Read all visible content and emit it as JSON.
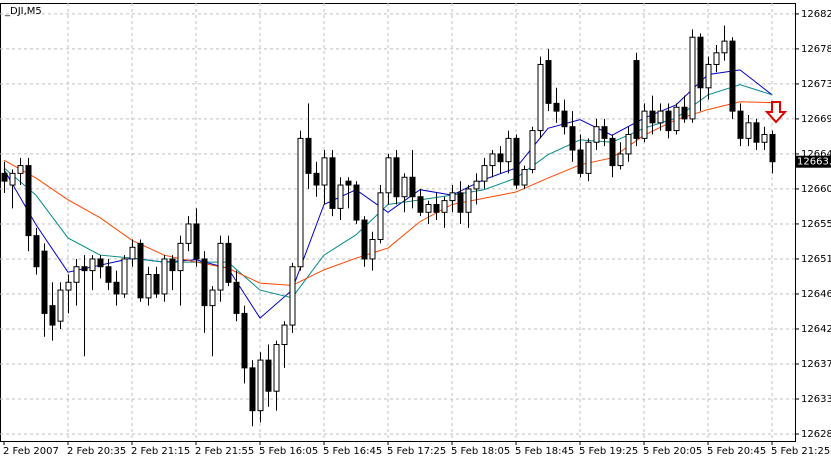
{
  "chart_data": {
    "type": "candlestick",
    "title": "_DJI,M5",
    "categories": [
      "2 Feb 2007",
      null,
      null,
      null,
      null,
      null,
      null,
      null,
      "2 Feb 20:35",
      null,
      null,
      null,
      null,
      null,
      null,
      null,
      "2 Feb 21:15",
      null,
      null,
      null,
      null,
      null,
      null,
      null,
      "2 Feb 21:55",
      null,
      null,
      null,
      null,
      null,
      null,
      null,
      "5 Feb 16:05",
      null,
      null,
      null,
      null,
      null,
      null,
      null,
      "5 Feb 16:45",
      null,
      null,
      null,
      null,
      null,
      null,
      null,
      "5 Feb 17:25",
      null,
      null,
      null,
      null,
      null,
      null,
      null,
      "5 Feb 18:05",
      null,
      null,
      null,
      null,
      null,
      null,
      null,
      "5 Feb 18:45",
      null,
      null,
      null,
      null,
      null,
      null,
      null,
      "5 Feb 19:25",
      null,
      null,
      null,
      null,
      null,
      null,
      null,
      "5 Feb 20:05",
      null,
      null,
      null,
      null,
      null,
      null,
      null,
      "5 Feb 20:45",
      null,
      null,
      null,
      null,
      null,
      null,
      null,
      "5 Feb 21:25"
    ],
    "open": [
      12662.0,
      12660.5,
      12662.0,
      12663.0,
      12654.0,
      12652.0,
      12645.0,
      12643.0,
      12647.0,
      12648.0,
      12650.0,
      12649.5,
      12651.0,
      12650.0,
      12648.0,
      12646.5,
      12651.0,
      12653.0,
      12646.0,
      12649.0,
      12646.5,
      12651.0,
      12649.5,
      12653.0,
      12655.5,
      12651.0,
      12645.0,
      12647.0,
      12653.0,
      12648.0,
      12644.0,
      12637.0,
      12631.5,
      12638.0,
      12634.0,
      12640.0,
      12642.5,
      12650.0,
      12666.5,
      12662.0,
      12660.5,
      12664.0,
      12657.5,
      12661.0,
      12660.5,
      12656.0,
      12651.0,
      12653.5,
      12659.5,
      12664.0,
      12659.0,
      12661.5,
      12659.0,
      12657.0,
      12658.0,
      12657.0,
      12658.5,
      12659.5,
      12657.0,
      12660.0,
      12661.0,
      12663.0,
      12664.5,
      12663.5,
      12666.5,
      12660.5,
      12662.5,
      12667.5,
      12676.5,
      12671.0,
      12670.0,
      12668.0,
      12665.0,
      12662.0,
      12666.0,
      12668.0,
      12666.5,
      12663.0,
      12664.5,
      12676.5,
      12666.5,
      12670.0,
      12668.5,
      12670.0,
      12667.5,
      12670.5,
      12669.0,
      12679.5,
      12673.0,
      12676.0,
      12677.5,
      12679.0,
      12670.0,
      12666.5,
      12668.5,
      12666.0,
      12667.0
    ],
    "high": [
      12663.5,
      12662.5,
      12664.0,
      12664.0,
      12655.0,
      12653.0,
      12648.0,
      12648.0,
      12649.0,
      12651.0,
      12651.5,
      12651.5,
      12651.5,
      12651.0,
      12649.5,
      12651.5,
      12653.5,
      12653.5,
      12650.0,
      12650.0,
      12651.5,
      12651.5,
      12654.0,
      12656.5,
      12657.5,
      12652.0,
      12647.5,
      12654.0,
      12654.0,
      12649.5,
      12645.0,
      12638.0,
      12639.0,
      12640.0,
      12640.5,
      12643.0,
      12650.5,
      12667.5,
      12671.0,
      12663.5,
      12665.0,
      12665.0,
      12661.5,
      12661.5,
      12661.0,
      12656.5,
      12654.5,
      12660.5,
      12664.5,
      12665.0,
      12662.0,
      12665.0,
      12660.0,
      12658.5,
      12659.5,
      12659.0,
      12660.5,
      12661.0,
      12660.5,
      12662.0,
      12664.0,
      12665.0,
      12665.5,
      12667.5,
      12667.0,
      12663.0,
      12668.0,
      12677.0,
      12678.0,
      12673.0,
      12671.5,
      12670.0,
      12667.0,
      12666.5,
      12669.0,
      12669.0,
      12667.0,
      12666.0,
      12668.0,
      12677.5,
      12671.0,
      12672.0,
      12671.0,
      12671.0,
      12671.0,
      12672.0,
      12680.5,
      12680.0,
      12677.0,
      12678.5,
      12681.0,
      12679.5,
      12671.0,
      12669.5,
      12669.0,
      12668.0,
      12667.5
    ],
    "low": [
      12659.5,
      12657.5,
      12660.5,
      12652.0,
      12649.0,
      12641.0,
      12640.5,
      12642.0,
      12644.0,
      12645.0,
      12638.5,
      12647.0,
      12648.5,
      12647.0,
      12645.0,
      12646.0,
      12650.0,
      12645.5,
      12645.0,
      12646.0,
      12645.5,
      12647.0,
      12645.0,
      12652.0,
      12650.0,
      12641.5,
      12638.5,
      12645.5,
      12647.5,
      12643.0,
      12635.0,
      12629.5,
      12630.0,
      12632.0,
      12631.5,
      12637.0,
      12641.5,
      12649.5,
      12660.0,
      12659.0,
      12658.0,
      12656.5,
      12656.0,
      12657.5,
      12655.5,
      12650.0,
      12649.5,
      12653.0,
      12658.0,
      12658.0,
      12657.0,
      12657.5,
      12656.5,
      12655.5,
      12656.0,
      12655.0,
      12657.0,
      12655.5,
      12655.0,
      12658.0,
      12660.0,
      12661.5,
      12662.0,
      12662.0,
      12660.0,
      12660.0,
      12662.0,
      12666.5,
      12670.0,
      12668.5,
      12667.0,
      12663.5,
      12661.5,
      12661.0,
      12665.0,
      12665.5,
      12661.5,
      12662.5,
      12663.5,
      12665.5,
      12666.0,
      12667.0,
      12667.5,
      12666.5,
      12667.0,
      12668.5,
      12668.5,
      12670.0,
      12671.5,
      12675.0,
      12676.5,
      12669.0,
      12665.5,
      12665.5,
      12665.0,
      12665.0,
      12662.0
    ],
    "close": [
      12661.0,
      12662.0,
      12663.0,
      12654.0,
      12650.0,
      12644.0,
      12642.5,
      12647.0,
      12648.0,
      12650.0,
      12649.5,
      12651.0,
      12650.0,
      12648.0,
      12646.5,
      12651.0,
      12652.5,
      12646.0,
      12649.0,
      12646.5,
      12651.0,
      12649.5,
      12653.0,
      12655.5,
      12651.0,
      12645.0,
      12647.0,
      12653.0,
      12648.0,
      12644.0,
      12637.0,
      12631.5,
      12638.0,
      12634.0,
      12640.0,
      12642.5,
      12650.0,
      12666.5,
      12662.0,
      12660.5,
      12664.0,
      12657.5,
      12660.5,
      12660.5,
      12656.0,
      12651.0,
      12653.5,
      12659.5,
      12664.0,
      12659.0,
      12661.5,
      12659.0,
      12657.0,
      12658.0,
      12657.0,
      12658.5,
      12659.5,
      12657.0,
      12660.0,
      12661.0,
      12663.0,
      12664.5,
      12663.5,
      12666.5,
      12660.5,
      12662.5,
      12667.5,
      12676.0,
      12671.0,
      12670.0,
      12668.0,
      12665.0,
      12662.0,
      12666.0,
      12668.0,
      12666.5,
      12663.0,
      12664.5,
      12667.0,
      12666.5,
      12670.0,
      12668.5,
      12670.0,
      12667.5,
      12670.5,
      12669.0,
      12679.5,
      12673.0,
      12676.0,
      12677.5,
      12679.0,
      12670.0,
      12666.5,
      12668.5,
      12666.0,
      12667.0,
      12663.5
    ],
    "series": [
      {
        "color": "#0000cc",
        "x": [
          0,
          4,
          8,
          12,
          16,
          20,
          24,
          28,
          32,
          36,
          40,
          44,
          48,
          52,
          56,
          60,
          64,
          68,
          72,
          76,
          80,
          84,
          88,
          92,
          96
        ],
        "values": [
          12662.5,
          12655.4,
          12649.3,
          12650.2,
          12651.1,
          12650.6,
          12650.9,
          12649.8,
          12643.4,
          12647.0,
          12658.0,
          12659.9,
          12657.0,
          12659.9,
          12659.2,
          12661.2,
          12662.7,
          12667.8,
          12668.9,
          12666.9,
          12669.1,
          12670.8,
          12674.7,
          12675.3,
          12672.1
        ]
      },
      {
        "color": "#008b8b",
        "x": [
          0,
          4,
          8,
          12,
          16,
          20,
          24,
          28,
          32,
          36,
          40,
          44,
          48,
          52,
          56,
          60,
          64,
          68,
          72,
          76,
          80,
          84,
          88,
          92,
          96
        ],
        "values": [
          12662.7,
          12659.2,
          12653.7,
          12651.5,
          12651.1,
          12650.6,
          12650.6,
          12650.6,
          12647.0,
          12646.0,
          12651.5,
          12654.1,
          12658.0,
          12658.6,
          12659.2,
          12659.9,
          12661.4,
          12664.4,
          12666.3,
          12666.0,
          12667.8,
          12669.1,
          12672.1,
          12673.4,
          12672.1
        ]
      },
      {
        "color": "#ff4500",
        "x": [
          0,
          4,
          8,
          12,
          16,
          20,
          24,
          28,
          32,
          36,
          40,
          44,
          48,
          52,
          56,
          60,
          64,
          68,
          72,
          76,
          80,
          84,
          88,
          92,
          96
        ],
        "values": [
          12663.7,
          12661.4,
          12658.6,
          12656.3,
          12653.4,
          12651.5,
          12650.6,
          12649.8,
          12647.9,
          12647.6,
          12649.6,
          12651.1,
          12652.4,
          12655.8,
          12658.0,
          12658.8,
          12659.6,
          12661.4,
          12663.1,
          12664.0,
          12666.9,
          12668.9,
          12670.2,
          12671.2,
          12671.1
        ]
      }
    ],
    "ylim": [
      12627.6,
      12683.9
    ],
    "yticks": [
      12682.5,
      {
        "value": 12678,
        "label": "12678.0"
      },
      12673.5,
      {
        "value": 12669,
        "label": "12669.0"
      },
      12664.5,
      {
        "value": 12660,
        "label": "12660.0"
      },
      12655.5,
      {
        "value": 12651,
        "label": "12651.0"
      },
      12646.5,
      {
        "value": 12642,
        "label": "12642.0"
      },
      12637.5,
      {
        "value": 12633,
        "label": "12633.0"
      },
      12628.5
    ],
    "grid": true
  }
}
